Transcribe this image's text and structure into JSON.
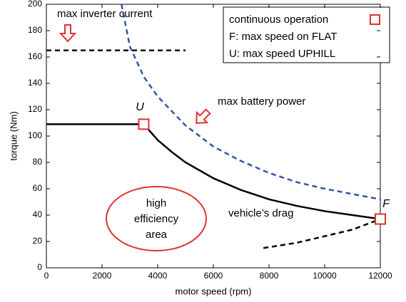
{
  "chart_data": {
    "type": "line",
    "xlabel": "motor speed (rpm)",
    "ylabel": "torque (Nm)",
    "xlim": [
      0,
      12000
    ],
    "xticks": [
      0,
      2000,
      4000,
      6000,
      8000,
      10000,
      12000
    ],
    "ylim": [
      0,
      200
    ],
    "yticks": [
      0,
      20,
      40,
      60,
      80,
      100,
      120,
      140,
      160,
      180,
      200
    ],
    "series": [
      {
        "color": "#000000",
        "dash": true,
        "x": [
          0,
          5000
        ],
        "values": [
          165,
          165
        ]
      },
      {
        "color": "#3355aa",
        "dash": true,
        "x": [
          2700,
          3000,
          3500,
          4000,
          5000,
          6000,
          7000,
          8000,
          9000,
          10000,
          11000,
          12000
        ],
        "values": [
          200,
          168,
          145,
          130,
          108,
          92,
          81,
          72,
          65,
          60,
          56,
          52
        ]
      },
      {
        "color": "#000000",
        "dash": false,
        "x": [
          0,
          3500,
          4000,
          4500,
          5000,
          6000,
          7000,
          8000,
          9000,
          10000,
          11000,
          12000
        ],
        "values": [
          109,
          109,
          97,
          88,
          80,
          68,
          59,
          52,
          47,
          43,
          40,
          37
        ]
      },
      {
        "color": "#000000",
        "dash": true,
        "x": [
          7800,
          9000,
          10000,
          11000,
          12000
        ],
        "values": [
          15,
          19,
          24,
          29,
          37
        ]
      },
      {
        "color": "#e03030",
        "marker": "square",
        "x": [
          3500,
          12000
        ],
        "values": [
          109,
          37
        ]
      }
    ],
    "annotations": [
      "max inverter current",
      "max battery power",
      "vehicle’s drag",
      "U",
      "F"
    ],
    "ellipse_text": [
      "high",
      "efficiency",
      "area"
    ],
    "legend": [
      "continuous operation",
      "F: max speed on FLAT",
      "U: max speed UPHILL"
    ]
  }
}
